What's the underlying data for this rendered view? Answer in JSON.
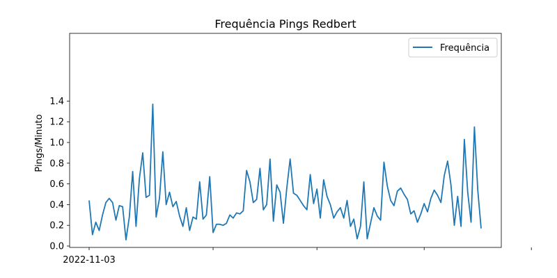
{
  "chart_data": {
    "type": "line",
    "title": "Frequência Pings Redbert",
    "xlabel": "",
    "ylabel": "Pings/Minuto",
    "ylim": [
      0.0,
      1.4
    ],
    "yticks": [
      "0.0",
      "0.2",
      "0.4",
      "0.6",
      "0.8",
      "1.0",
      "1.2",
      "1.4"
    ],
    "xticks": [
      {
        "label": "2022-11-03",
        "index": 0
      },
      {
        "label": "",
        "index": 37
      },
      {
        "label": "",
        "index": 68
      },
      {
        "label": "",
        "index": 100
      },
      {
        "label": "",
        "index": 132
      }
    ],
    "grid": false,
    "legend": "top-right",
    "color": "#1f77b4",
    "series": [
      {
        "name": "Frequência",
        "values": [
          0.44,
          0.11,
          0.23,
          0.15,
          0.3,
          0.42,
          0.46,
          0.42,
          0.25,
          0.39,
          0.38,
          0.06,
          0.28,
          0.72,
          0.19,
          0.65,
          0.9,
          0.47,
          0.49,
          1.37,
          0.28,
          0.46,
          0.91,
          0.4,
          0.52,
          0.38,
          0.43,
          0.29,
          0.19,
          0.37,
          0.15,
          0.28,
          0.26,
          0.62,
          0.26,
          0.3,
          0.67,
          0.13,
          0.21,
          0.21,
          0.2,
          0.22,
          0.3,
          0.27,
          0.32,
          0.31,
          0.34,
          0.73,
          0.62,
          0.42,
          0.45,
          0.75,
          0.35,
          0.4,
          0.84,
          0.24,
          0.59,
          0.52,
          0.22,
          0.56,
          0.84,
          0.51,
          0.49,
          0.44,
          0.39,
          0.35,
          0.69,
          0.41,
          0.55,
          0.27,
          0.64,
          0.48,
          0.4,
          0.27,
          0.33,
          0.37,
          0.27,
          0.44,
          0.19,
          0.26,
          0.07,
          0.19,
          0.62,
          0.07,
          0.22,
          0.37,
          0.29,
          0.25,
          0.81,
          0.58,
          0.44,
          0.39,
          0.53,
          0.56,
          0.5,
          0.45,
          0.31,
          0.34,
          0.23,
          0.31,
          0.41,
          0.33,
          0.46,
          0.54,
          0.49,
          0.42,
          0.68,
          0.82,
          0.59,
          0.2,
          0.48,
          0.19,
          1.03,
          0.52,
          0.23,
          1.15,
          0.54,
          0.17
        ]
      }
    ]
  }
}
